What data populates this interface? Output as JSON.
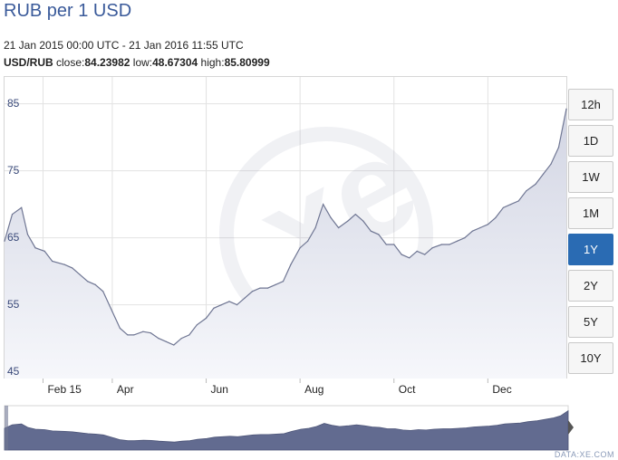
{
  "header": {
    "title": "RUB per 1 USD",
    "range_text": "21 Jan 2015 00:00 UTC - 21 Jan 2016 11:55 UTC",
    "pair": "USD/RUB",
    "close_label": "close:",
    "close": "84.23982",
    "low_label": "low:",
    "low": "48.67304",
    "high_label": "high:",
    "high": "85.80999"
  },
  "range_buttons": [
    {
      "label": "12h",
      "active": false
    },
    {
      "label": "1D",
      "active": false
    },
    {
      "label": "1W",
      "active": false
    },
    {
      "label": "1M",
      "active": false
    },
    {
      "label": "1Y",
      "active": true
    },
    {
      "label": "2Y",
      "active": false
    },
    {
      "label": "5Y",
      "active": false
    },
    {
      "label": "10Y",
      "active": false
    }
  ],
  "credit": "DATA:XE.COM",
  "colors": {
    "line": "#6f7693",
    "area_top": "#d9dbe6",
    "navigator_fill": "#626b90",
    "active_button": "#2a6bb3"
  },
  "chart_data": {
    "type": "area",
    "x": [
      "2015-01-21",
      "2015-01-26",
      "2015-02-01",
      "2015-02-05",
      "2015-02-10",
      "2015-02-16",
      "2015-02-21",
      "2015-03-01",
      "2015-03-06",
      "2015-03-11",
      "2015-03-16",
      "2015-03-21",
      "2015-03-26",
      "2015-04-01",
      "2015-04-06",
      "2015-04-11",
      "2015-04-15",
      "2015-04-21",
      "2015-04-26",
      "2015-05-01",
      "2015-05-06",
      "2015-05-11",
      "2015-05-16",
      "2015-05-21",
      "2015-05-26",
      "2015-06-01",
      "2015-06-06",
      "2015-06-11",
      "2015-06-16",
      "2015-06-21",
      "2015-06-26",
      "2015-07-01",
      "2015-07-06",
      "2015-07-11",
      "2015-07-16",
      "2015-07-21",
      "2015-07-26",
      "2015-08-01",
      "2015-08-06",
      "2015-08-11",
      "2015-08-16",
      "2015-08-21",
      "2015-08-26",
      "2015-09-01",
      "2015-09-06",
      "2015-09-11",
      "2015-09-16",
      "2015-09-21",
      "2015-09-26",
      "2015-10-01",
      "2015-10-06",
      "2015-10-11",
      "2015-10-16",
      "2015-10-21",
      "2015-10-26",
      "2015-11-01",
      "2015-11-06",
      "2015-11-11",
      "2015-11-16",
      "2015-11-21",
      "2015-11-26",
      "2015-12-01",
      "2015-12-06",
      "2015-12-11",
      "2015-12-16",
      "2015-12-21",
      "2015-12-26",
      "2016-01-01",
      "2016-01-06",
      "2016-01-11",
      "2016-01-16",
      "2016-01-21"
    ],
    "values": [
      64.5,
      68.5,
      69.5,
      65.5,
      63.5,
      63.0,
      61.5,
      61.0,
      60.5,
      59.5,
      58.5,
      58.0,
      57.0,
      54.0,
      51.5,
      50.5,
      50.5,
      51.0,
      50.8,
      50.0,
      49.5,
      49.0,
      50.0,
      50.5,
      52.0,
      53.0,
      54.5,
      55.0,
      55.5,
      55.0,
      56.0,
      57.0,
      57.5,
      57.5,
      58.0,
      58.5,
      61.0,
      63.5,
      64.5,
      66.5,
      70.0,
      68.0,
      66.5,
      67.5,
      68.5,
      67.5,
      66.0,
      65.5,
      64.0,
      64.0,
      62.5,
      62.0,
      63.0,
      62.5,
      63.5,
      64.0,
      64.0,
      64.5,
      65.0,
      66.0,
      66.5,
      67.0,
      68.0,
      69.5,
      70.0,
      70.5,
      72.0,
      73.0,
      74.5,
      76.0,
      78.5,
      84.24
    ],
    "title": "RUB per 1 USD",
    "xlabel": "",
    "ylabel": "",
    "xtick_labels": [
      {
        "date": "2015-02-15",
        "label": "Feb 15"
      },
      {
        "date": "2015-04-01",
        "label": "Apr"
      },
      {
        "date": "2015-06-01",
        "label": "Jun"
      },
      {
        "date": "2015-08-01",
        "label": "Aug"
      },
      {
        "date": "2015-10-01",
        "label": "Oct"
      },
      {
        "date": "2015-12-01",
        "label": "Dec"
      }
    ],
    "yticks": [
      45,
      55,
      65,
      75,
      85
    ],
    "ylim": [
      44,
      89
    ],
    "xlim": [
      "2015-01-21",
      "2016-01-21"
    ],
    "grid": true,
    "legend": "none"
  }
}
